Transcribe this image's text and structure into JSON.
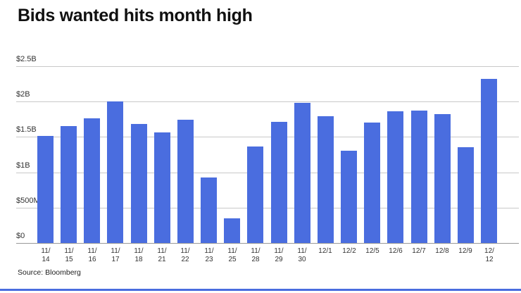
{
  "title": "Bids wanted hits month high",
  "source": "Source: Bloomberg",
  "colors": {
    "bar": "#4a6ddf",
    "grid": "#c9c9c9",
    "axis": "#999999",
    "accent": "#4a6ddf",
    "title": "#111111",
    "tick": "#333333"
  },
  "chart_data": {
    "type": "bar",
    "title": "Bids wanted hits month high",
    "source": "Source: Bloomberg",
    "unit": "USD (B = billions, M = millions)",
    "categories": [
      "11/14",
      "11/15",
      "11/16",
      "11/17",
      "11/18",
      "11/21",
      "11/22",
      "11/23",
      "11/25",
      "11/28",
      "11/29",
      "11/30",
      "12/1",
      "12/2",
      "12/5",
      "12/6",
      "12/7",
      "12/8",
      "12/9",
      "12/12"
    ],
    "values": [
      1.51,
      1.65,
      1.76,
      2.0,
      1.68,
      1.56,
      1.74,
      0.93,
      0.35,
      1.36,
      1.71,
      1.98,
      1.79,
      1.3,
      1.7,
      1.86,
      1.87,
      1.82,
      1.35,
      2.32
    ],
    "x_tick_lines": [
      [
        "11/",
        "14"
      ],
      [
        "11/",
        "15"
      ],
      [
        "11/",
        "16"
      ],
      [
        "11/",
        "17"
      ],
      [
        "11/",
        "18"
      ],
      [
        "11/",
        "21"
      ],
      [
        "11/",
        "22"
      ],
      [
        "11/",
        "23"
      ],
      [
        "11/",
        "25"
      ],
      [
        "11/",
        "28"
      ],
      [
        "11/",
        "29"
      ],
      [
        "11/",
        "30"
      ],
      [
        "12/1"
      ],
      [
        "12/2"
      ],
      [
        "12/5"
      ],
      [
        "12/6"
      ],
      [
        "12/7"
      ],
      [
        "12/8"
      ],
      [
        "12/9"
      ],
      [
        "12/",
        "12"
      ]
    ],
    "y_ticks": [
      {
        "label": "$2.5B",
        "value": 2.5
      },
      {
        "label": "$2B",
        "value": 2.0
      },
      {
        "label": "$1.5B",
        "value": 1.5
      },
      {
        "label": "$1B",
        "value": 1.0
      },
      {
        "label": "$500M",
        "value": 0.5
      },
      {
        "label": "$0",
        "value": 0.0
      }
    ],
    "ylim": [
      0,
      2.5
    ],
    "grid": "horizontal",
    "legend": "none"
  }
}
